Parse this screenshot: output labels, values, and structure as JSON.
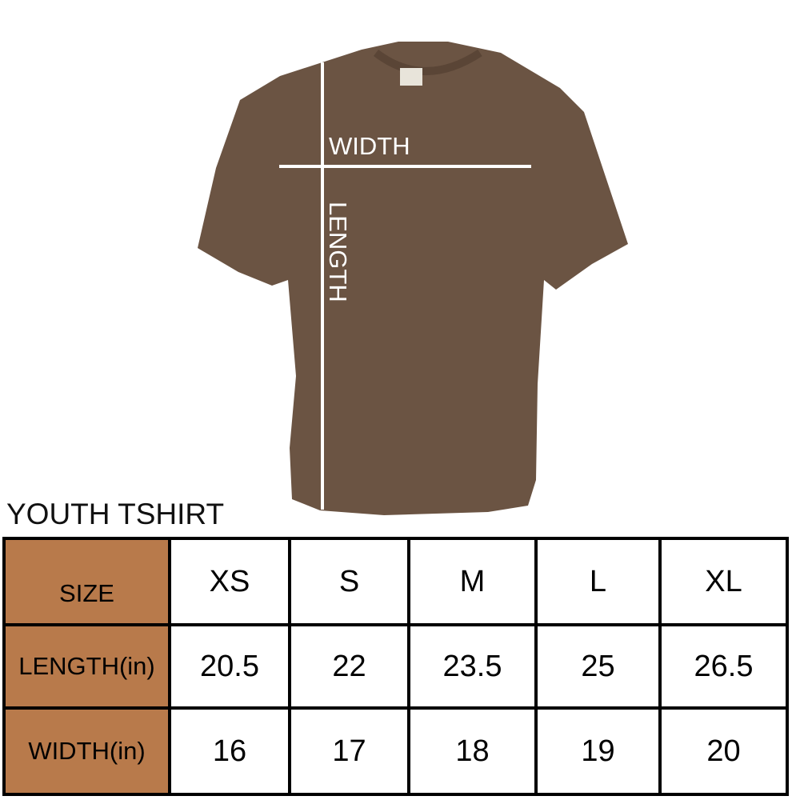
{
  "diagram": {
    "width_label": "WIDTH",
    "length_label": "LENGTH",
    "shirt_color": "#6b5443"
  },
  "table": {
    "title": "YOUTH TSHIRT",
    "header_color": "#b87a4b",
    "row_labels": [
      "SIZE",
      "LENGTH(in)",
      "WIDTH(in)"
    ],
    "sizes": [
      "XS",
      "S",
      "M",
      "L",
      "XL"
    ],
    "length_in": [
      "20.5",
      "22",
      "23.5",
      "25",
      "26.5"
    ],
    "width_in": [
      "16",
      "17",
      "18",
      "19",
      "20"
    ]
  }
}
